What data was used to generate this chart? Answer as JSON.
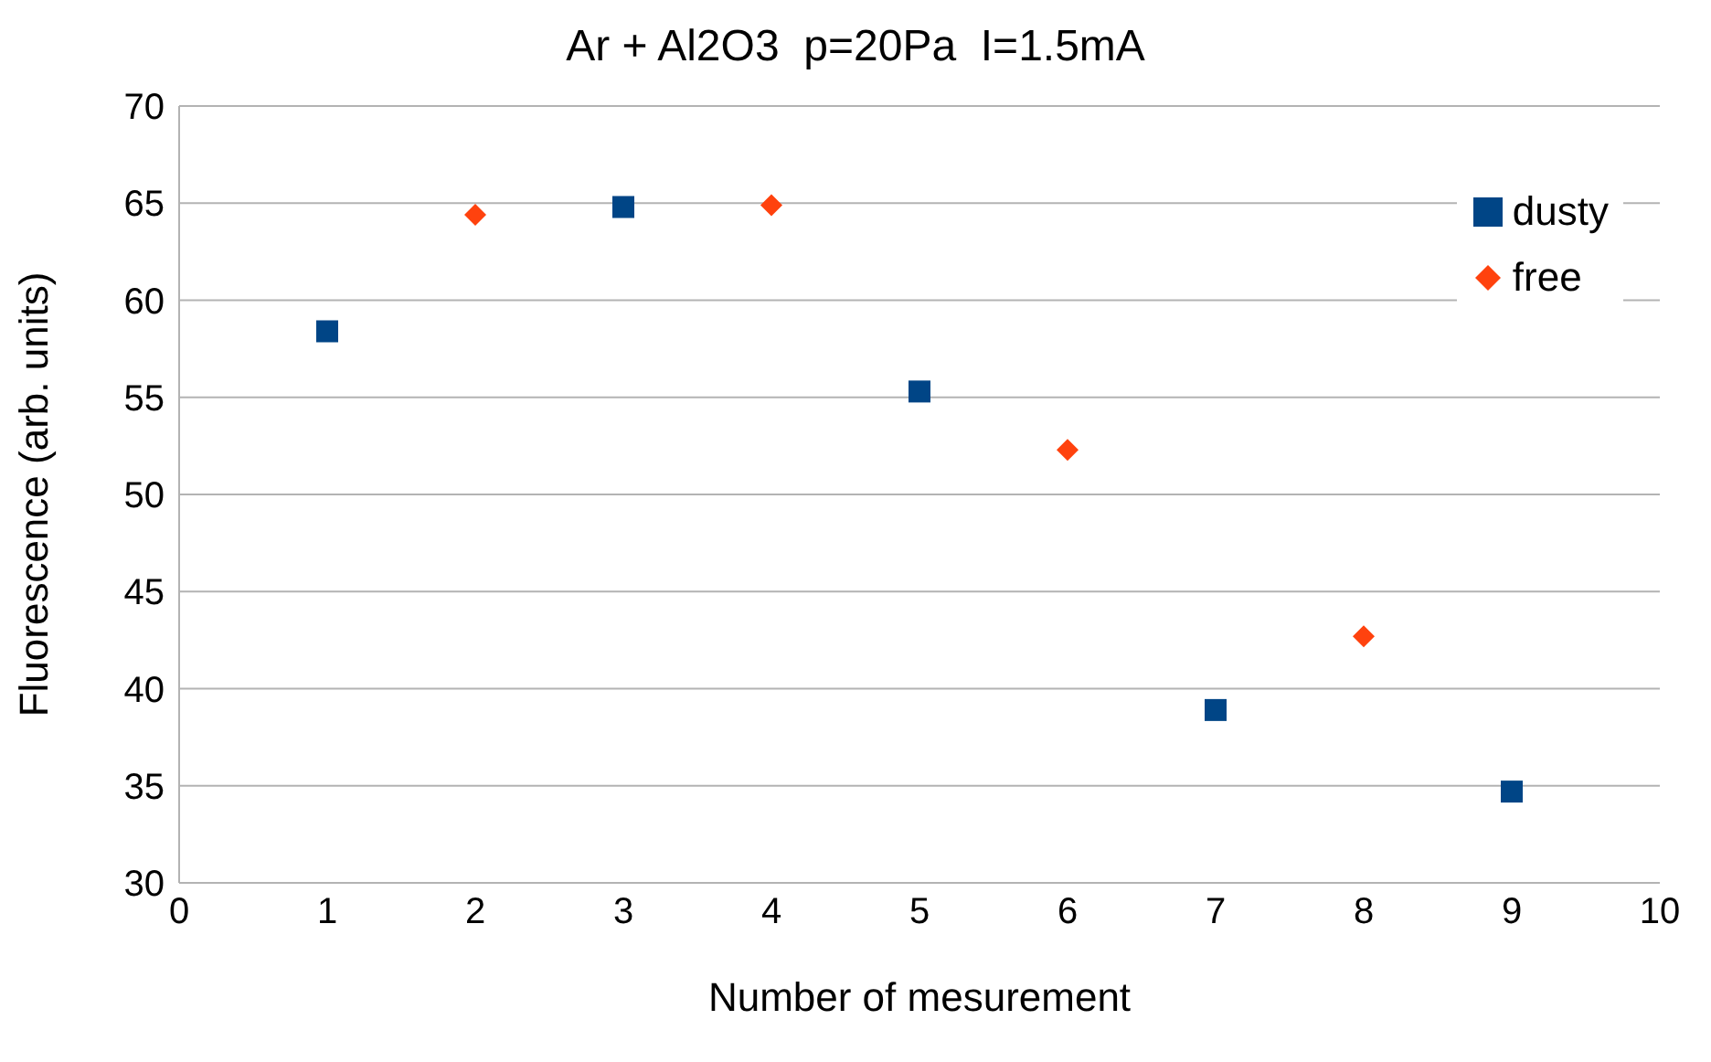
{
  "chart_data": {
    "type": "scatter",
    "title": "Ar + Al2O3  p=20Pa  I=1.5mA",
    "xlabel": "Number of mesurement",
    "ylabel": "Fluorescence (arb. units)",
    "xlim": [
      0,
      10
    ],
    "xticks": [
      0,
      1,
      2,
      3,
      4,
      5,
      6,
      7,
      8,
      9,
      10
    ],
    "ylim": [
      30,
      70
    ],
    "yticks": [
      30,
      35,
      40,
      45,
      50,
      55,
      60,
      65,
      70
    ],
    "grid": "y",
    "legend": "top right",
    "series": [
      {
        "name": "dusty",
        "color": "#004586",
        "marker": "square",
        "x": [
          1,
          3,
          5,
          7,
          9
        ],
        "values": [
          58.4,
          64.8,
          55.3,
          38.9,
          34.7
        ]
      },
      {
        "name": "free",
        "color": "#ff420e",
        "marker": "diamond",
        "x": [
          2,
          4,
          6,
          8
        ],
        "values": [
          64.4,
          64.9,
          52.3,
          42.7
        ]
      }
    ]
  }
}
